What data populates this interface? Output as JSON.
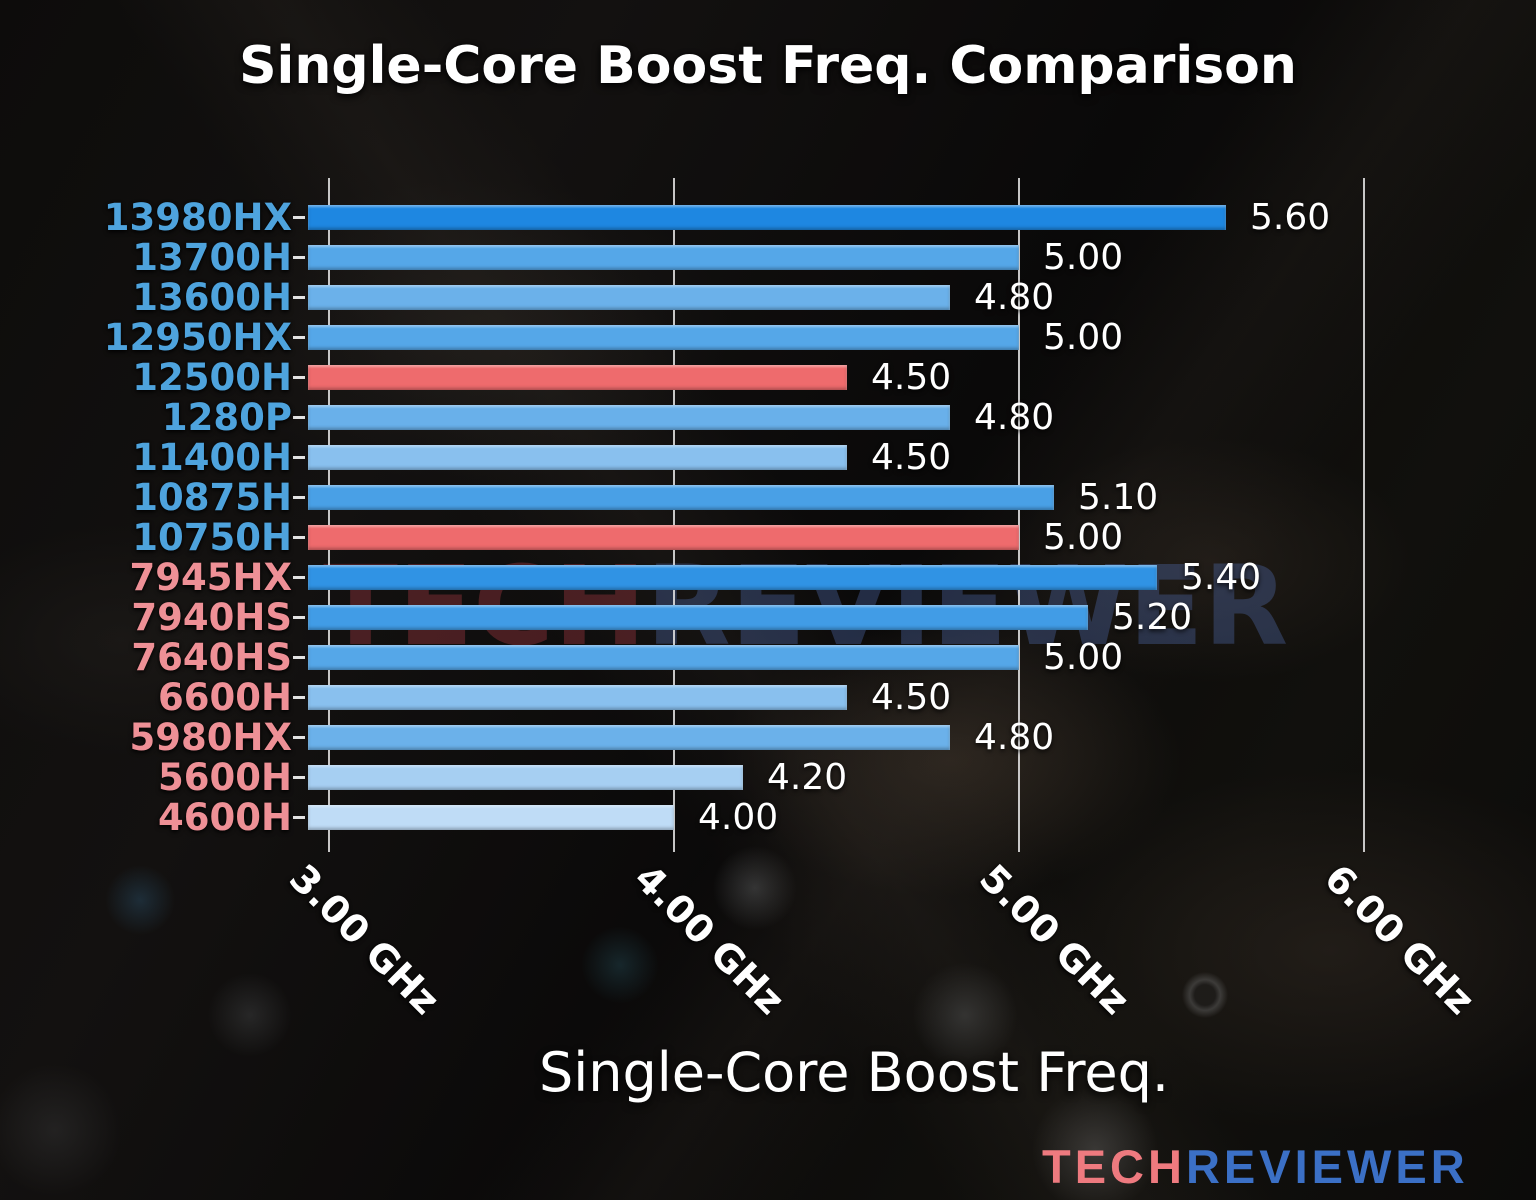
{
  "title": "Single-Core Boost Freq. Comparison",
  "x_axis_label": "Single-Core Boost Freq.",
  "watermark": {
    "tech": "TECH",
    "reviewer": "REVIEWER"
  },
  "logo": {
    "tech": "TECH",
    "reviewer": "REVIEWER"
  },
  "colors": {
    "intel_category_label": "#4ea3dd",
    "amd_category_label": "#ee9096",
    "highlighted_bar": "#ee6b6d",
    "value_label": "#ffffff",
    "gridline": "#e0e0e0",
    "title_text": "#ffffff",
    "logo_tech": "#ee7a7f",
    "logo_reviewer": "#3b70c6"
  },
  "chart_data": {
    "type": "bar",
    "orientation": "horizontal",
    "title": "Single-Core Boost Freq. Comparison",
    "xlabel": "Single-Core Boost Freq.",
    "unit": "GHz",
    "xlim": [
      2.94,
      6.35
    ],
    "grid": "vertical-gridlines-on",
    "legend": "none",
    "x_ticks": [
      {
        "value": 3.0,
        "label": "3.00 GHz"
      },
      {
        "value": 4.0,
        "label": "4.00 GHz"
      },
      {
        "value": 5.0,
        "label": "5.00 GHz"
      },
      {
        "value": 6.0,
        "label": "6.00 GHz"
      }
    ],
    "bars": [
      {
        "category": "13980HX",
        "value": 5.6,
        "value_label": "5.60",
        "bar_color": "#1e87e1",
        "category_color": "#4ea3dd",
        "vendor": "intel",
        "highlighted": false
      },
      {
        "category": "13700H",
        "value": 5.0,
        "value_label": "5.00",
        "bar_color": "#55a7e8",
        "category_color": "#4ea3dd",
        "vendor": "intel",
        "highlighted": false
      },
      {
        "category": "13600H",
        "value": 4.8,
        "value_label": "4.80",
        "bar_color": "#6bb1ea",
        "category_color": "#4ea3dd",
        "vendor": "intel",
        "highlighted": false
      },
      {
        "category": "12950HX",
        "value": 5.0,
        "value_label": "5.00",
        "bar_color": "#55a7e8",
        "category_color": "#4ea3dd",
        "vendor": "intel",
        "highlighted": false
      },
      {
        "category": "12500H",
        "value": 4.5,
        "value_label": "4.50",
        "bar_color": "#ee6b6d",
        "category_color": "#4ea3dd",
        "vendor": "intel",
        "highlighted": true
      },
      {
        "category": "1280P",
        "value": 4.8,
        "value_label": "4.80",
        "bar_color": "#69b0ea",
        "category_color": "#4ea3dd",
        "vendor": "intel",
        "highlighted": false
      },
      {
        "category": "11400H",
        "value": 4.5,
        "value_label": "4.50",
        "bar_color": "#89c0ee",
        "category_color": "#4ea3dd",
        "vendor": "intel",
        "highlighted": false
      },
      {
        "category": "10875H",
        "value": 5.1,
        "value_label": "5.10",
        "bar_color": "#49a0e6",
        "category_color": "#4ea3dd",
        "vendor": "intel",
        "highlighted": false
      },
      {
        "category": "10750H",
        "value": 5.0,
        "value_label": "5.00",
        "bar_color": "#ee6b6d",
        "category_color": "#4ea3dd",
        "vendor": "intel",
        "highlighted": true
      },
      {
        "category": "7945HX",
        "value": 5.4,
        "value_label": "5.40",
        "bar_color": "#3093e4",
        "category_color": "#ee9096",
        "vendor": "amd",
        "highlighted": false
      },
      {
        "category": "7940HS",
        "value": 5.2,
        "value_label": "5.20",
        "bar_color": "#419ce6",
        "category_color": "#ee9096",
        "vendor": "amd",
        "highlighted": false
      },
      {
        "category": "7640HS",
        "value": 5.0,
        "value_label": "5.00",
        "bar_color": "#55a7e8",
        "category_color": "#ee9096",
        "vendor": "amd",
        "highlighted": false
      },
      {
        "category": "6600H",
        "value": 4.5,
        "value_label": "4.50",
        "bar_color": "#89c0ee",
        "category_color": "#ee9096",
        "vendor": "amd",
        "highlighted": false
      },
      {
        "category": "5980HX",
        "value": 4.8,
        "value_label": "4.80",
        "bar_color": "#6bb1ea",
        "category_color": "#ee9096",
        "vendor": "amd",
        "highlighted": false
      },
      {
        "category": "5600H",
        "value": 4.2,
        "value_label": "4.20",
        "bar_color": "#a6cff2",
        "category_color": "#ee9096",
        "vendor": "amd",
        "highlighted": false
      },
      {
        "category": "4600H",
        "value": 4.0,
        "value_label": "4.00",
        "bar_color": "#bfdcf6",
        "category_color": "#ee9096",
        "vendor": "amd",
        "highlighted": false
      }
    ]
  }
}
